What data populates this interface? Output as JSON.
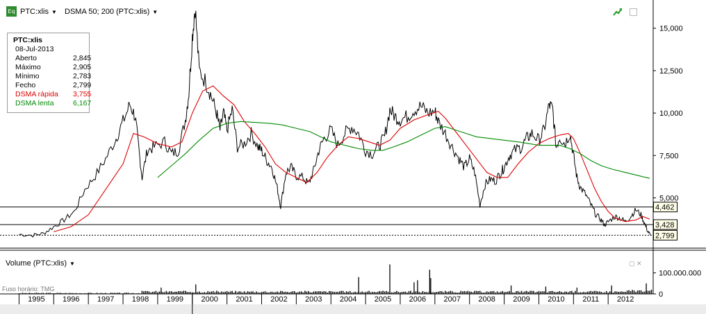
{
  "toolbar": {
    "eq_badge": "Eq",
    "symbol_menu": "PTC:xlis",
    "study_menu": "DSMA 50; 200 (PTC:xlis)"
  },
  "icons": {
    "eq": "eq-badge-icon",
    "trend": "trend-arrow-icon",
    "maximize": "maximize-icon",
    "close": "close-icon",
    "caret": "caret-down-icon"
  },
  "legend": {
    "symbol": "PTC:xlis",
    "date": "08-Jul-2013",
    "rows": [
      {
        "label": "Aberto",
        "value": "2,845",
        "color": "#000000"
      },
      {
        "label": "Máximo",
        "value": "2,905",
        "color": "#000000"
      },
      {
        "label": "Mínimo",
        "value": "2,783",
        "color": "#000000"
      },
      {
        "label": "Fecho",
        "value": "2,799",
        "color": "#000000"
      },
      {
        "label": "DSMA rápida",
        "value": "3,755",
        "color": "#dd0000"
      },
      {
        "label": "DSMA lenta",
        "value": "6,167",
        "color": "#008800"
      }
    ]
  },
  "volume_panel": {
    "title": "Volume (PTC:xlis)",
    "timezone": "Fuso horário: TMG"
  },
  "chart_data": {
    "type": "line",
    "x_unit": "year",
    "x_tick_labels": [
      "1995",
      "1996",
      "1997",
      "1998",
      "1999",
      "2000",
      "2001",
      "2002",
      "2003",
      "2004",
      "2005",
      "2006",
      "2007",
      "2008",
      "2009",
      "2010",
      "2011",
      "2012"
    ],
    "y_tick_labels": [
      "5,000",
      "7,500",
      "10,000",
      "12,500",
      "15,000"
    ],
    "ylim": [
      2.2,
      16.5
    ],
    "price_levels": [
      {
        "label": "4,462",
        "value": 4.462
      },
      {
        "label": "3,428",
        "value": 3.428
      },
      {
        "label": "2,799",
        "value": 2.799,
        "dashed": true
      }
    ],
    "series": [
      {
        "key": "price",
        "color": "#000000",
        "points": [
          [
            1995.0,
            2.85
          ],
          [
            1995.4,
            2.8
          ],
          [
            1995.7,
            2.9
          ],
          [
            1996.0,
            3.3
          ],
          [
            1996.3,
            3.7
          ],
          [
            1996.6,
            4.2
          ],
          [
            1996.9,
            5.5
          ],
          [
            1997.2,
            6.3
          ],
          [
            1997.5,
            7.3
          ],
          [
            1997.8,
            8.5
          ],
          [
            1998.0,
            9.5
          ],
          [
            1998.2,
            10.5
          ],
          [
            1998.35,
            9.8
          ],
          [
            1998.45,
            8.0
          ],
          [
            1998.55,
            6.2
          ],
          [
            1998.7,
            7.8
          ],
          [
            1998.9,
            8.0
          ],
          [
            1999.2,
            8.3
          ],
          [
            1999.4,
            7.6
          ],
          [
            1999.6,
            7.8
          ],
          [
            1999.8,
            9.6
          ],
          [
            1999.9,
            11.2
          ],
          [
            2000.0,
            14.5
          ],
          [
            2000.08,
            16.3
          ],
          [
            2000.2,
            12.5
          ],
          [
            2000.4,
            11.8
          ],
          [
            2000.55,
            11.0
          ],
          [
            2000.7,
            10.0
          ],
          [
            2000.8,
            9.0
          ],
          [
            2000.9,
            10.0
          ],
          [
            2001.0,
            9.0
          ],
          [
            2001.15,
            10.2
          ],
          [
            2001.3,
            8.0
          ],
          [
            2001.5,
            8.2
          ],
          [
            2001.7,
            8.8
          ],
          [
            2001.9,
            8.0
          ],
          [
            2002.0,
            7.8
          ],
          [
            2002.15,
            7.2
          ],
          [
            2002.3,
            6.8
          ],
          [
            2002.45,
            5.6
          ],
          [
            2002.55,
            4.5
          ],
          [
            2002.7,
            6.5
          ],
          [
            2002.85,
            6.8
          ],
          [
            2003.0,
            6.3
          ],
          [
            2003.2,
            6.2
          ],
          [
            2003.35,
            5.8
          ],
          [
            2003.5,
            6.6
          ],
          [
            2003.65,
            7.8
          ],
          [
            2003.8,
            8.5
          ],
          [
            2004.0,
            9.0
          ],
          [
            2004.2,
            8.1
          ],
          [
            2004.4,
            8.8
          ],
          [
            2004.6,
            9.2
          ],
          [
            2004.8,
            8.8
          ],
          [
            2005.0,
            7.8
          ],
          [
            2005.2,
            7.6
          ],
          [
            2005.4,
            8.1
          ],
          [
            2005.55,
            8.6
          ],
          [
            2005.7,
            10.2
          ],
          [
            2005.85,
            9.8
          ],
          [
            2006.0,
            9.6
          ],
          [
            2006.2,
            9.8
          ],
          [
            2006.4,
            10.2
          ],
          [
            2006.6,
            10.4
          ],
          [
            2006.8,
            10.0
          ],
          [
            2007.0,
            10.1
          ],
          [
            2007.1,
            9.5
          ],
          [
            2007.3,
            8.8
          ],
          [
            2007.5,
            8.0
          ],
          [
            2007.7,
            7.3
          ],
          [
            2007.85,
            6.8
          ],
          [
            2008.0,
            7.3
          ],
          [
            2008.15,
            6.5
          ],
          [
            2008.3,
            4.6
          ],
          [
            2008.45,
            5.8
          ],
          [
            2008.6,
            6.1
          ],
          [
            2008.75,
            6.0
          ],
          [
            2008.9,
            6.5
          ],
          [
            2009.0,
            6.8
          ],
          [
            2009.15,
            7.5
          ],
          [
            2009.3,
            7.8
          ],
          [
            2009.5,
            8.0
          ],
          [
            2009.65,
            8.5
          ],
          [
            2009.8,
            8.8
          ],
          [
            2010.0,
            8.4
          ],
          [
            2010.15,
            9.0
          ],
          [
            2010.3,
            10.5
          ],
          [
            2010.4,
            10.2
          ],
          [
            2010.5,
            8.0
          ],
          [
            2010.6,
            8.6
          ],
          [
            2010.75,
            8.2
          ],
          [
            2010.9,
            8.8
          ],
          [
            2011.0,
            7.5
          ],
          [
            2011.1,
            6.2
          ],
          [
            2011.2,
            5.6
          ],
          [
            2011.35,
            5.2
          ],
          [
            2011.5,
            4.6
          ],
          [
            2011.65,
            4.0
          ],
          [
            2011.8,
            3.7
          ],
          [
            2011.9,
            3.4
          ],
          [
            2012.0,
            3.6
          ],
          [
            2012.2,
            3.9
          ],
          [
            2012.35,
            3.8
          ],
          [
            2012.5,
            3.6
          ],
          [
            2012.65,
            3.9
          ],
          [
            2012.8,
            4.3
          ],
          [
            2012.95,
            4.0
          ],
          [
            2013.05,
            3.5
          ],
          [
            2013.15,
            3.0
          ],
          [
            2013.22,
            2.8
          ]
        ]
      },
      {
        "key": "dsma_fast",
        "color": "#dd0000",
        "points": [
          [
            1996.0,
            3.0
          ],
          [
            1996.5,
            3.3
          ],
          [
            1997.0,
            4.0
          ],
          [
            1997.5,
            5.5
          ],
          [
            1998.0,
            7.0
          ],
          [
            1998.3,
            8.8
          ],
          [
            1998.6,
            8.6
          ],
          [
            1999.0,
            8.2
          ],
          [
            1999.4,
            8.0
          ],
          [
            1999.7,
            8.3
          ],
          [
            2000.0,
            10.0
          ],
          [
            2000.3,
            11.3
          ],
          [
            2000.6,
            11.6
          ],
          [
            2000.9,
            11.0
          ],
          [
            2001.2,
            10.5
          ],
          [
            2001.5,
            9.5
          ],
          [
            2001.8,
            8.8
          ],
          [
            2002.1,
            8.0
          ],
          [
            2002.4,
            7.0
          ],
          [
            2002.7,
            6.5
          ],
          [
            2003.0,
            6.2
          ],
          [
            2003.3,
            5.9
          ],
          [
            2003.6,
            6.5
          ],
          [
            2003.9,
            7.4
          ],
          [
            2004.2,
            8.1
          ],
          [
            2004.5,
            8.6
          ],
          [
            2004.8,
            8.5
          ],
          [
            2005.1,
            8.3
          ],
          [
            2005.4,
            8.1
          ],
          [
            2005.7,
            8.4
          ],
          [
            2006.0,
            9.1
          ],
          [
            2006.4,
            9.6
          ],
          [
            2006.8,
            9.9
          ],
          [
            2007.1,
            10.1
          ],
          [
            2007.3,
            9.7
          ],
          [
            2007.6,
            8.9
          ],
          [
            2007.9,
            8.1
          ],
          [
            2008.2,
            7.3
          ],
          [
            2008.5,
            6.5
          ],
          [
            2008.8,
            6.2
          ],
          [
            2009.1,
            6.2
          ],
          [
            2009.4,
            7.0
          ],
          [
            2009.7,
            7.7
          ],
          [
            2010.0,
            8.2
          ],
          [
            2010.3,
            8.5
          ],
          [
            2010.6,
            8.7
          ],
          [
            2010.85,
            8.8
          ],
          [
            2011.0,
            8.5
          ],
          [
            2011.2,
            7.6
          ],
          [
            2011.4,
            6.6
          ],
          [
            2011.6,
            5.6
          ],
          [
            2011.8,
            4.8
          ],
          [
            2012.0,
            4.2
          ],
          [
            2012.2,
            3.8
          ],
          [
            2012.5,
            3.6
          ],
          [
            2012.8,
            3.7
          ],
          [
            2013.0,
            3.9
          ],
          [
            2013.2,
            3.75
          ]
        ]
      },
      {
        "key": "dsma_slow",
        "color": "#008800",
        "points": [
          [
            1999.0,
            6.2
          ],
          [
            1999.4,
            6.9
          ],
          [
            1999.8,
            7.6
          ],
          [
            2000.2,
            8.4
          ],
          [
            2000.6,
            9.1
          ],
          [
            2001.0,
            9.4
          ],
          [
            2001.4,
            9.5
          ],
          [
            2001.8,
            9.45
          ],
          [
            2002.2,
            9.4
          ],
          [
            2002.6,
            9.3
          ],
          [
            2003.0,
            9.1
          ],
          [
            2003.4,
            8.9
          ],
          [
            2003.7,
            8.6
          ],
          [
            2004.0,
            8.3
          ],
          [
            2004.4,
            8.1
          ],
          [
            2004.8,
            7.9
          ],
          [
            2005.2,
            7.8
          ],
          [
            2005.5,
            7.8
          ],
          [
            2005.8,
            8.0
          ],
          [
            2006.2,
            8.3
          ],
          [
            2006.6,
            8.7
          ],
          [
            2007.0,
            9.1
          ],
          [
            2007.3,
            9.2
          ],
          [
            2007.6,
            9.0
          ],
          [
            2007.9,
            8.8
          ],
          [
            2008.2,
            8.6
          ],
          [
            2008.6,
            8.5
          ],
          [
            2009.0,
            8.4
          ],
          [
            2009.4,
            8.3
          ],
          [
            2009.7,
            8.2
          ],
          [
            2010.0,
            8.1
          ],
          [
            2010.3,
            8.1
          ],
          [
            2010.6,
            8.1
          ],
          [
            2010.9,
            7.9
          ],
          [
            2011.2,
            7.6
          ],
          [
            2011.5,
            7.2
          ],
          [
            2011.8,
            6.9
          ],
          [
            2012.1,
            6.7
          ],
          [
            2012.5,
            6.5
          ],
          [
            2012.9,
            6.3
          ],
          [
            2013.2,
            6.15
          ]
        ]
      }
    ],
    "volume": {
      "y_tick_labels": [
        "100.000.000",
        "0"
      ],
      "ylim": [
        0,
        145000000
      ],
      "spikes": [
        [
          1999.1,
          30000000
        ],
        [
          2000.1,
          45000000
        ],
        [
          2004.8,
          80000000
        ],
        [
          2005.7,
          140000000
        ],
        [
          2006.4,
          55000000
        ],
        [
          2006.5,
          65000000
        ],
        [
          2006.85,
          115000000
        ],
        [
          2006.88,
          75000000
        ],
        [
          2009.2,
          40000000
        ],
        [
          2010.2,
          35000000
        ],
        [
          2011.1,
          30000000
        ],
        [
          2012.1,
          40000000
        ],
        [
          2013.1,
          50000000
        ]
      ]
    }
  }
}
